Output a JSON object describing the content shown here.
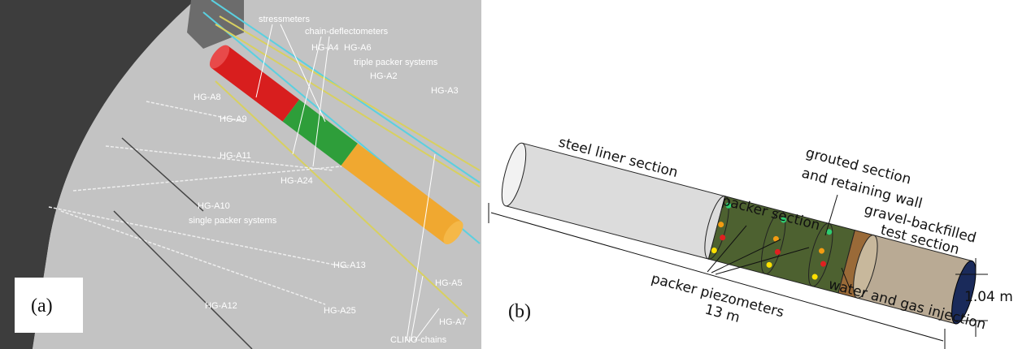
{
  "panel_a": {
    "label": "(a)",
    "annotations": [
      "stressmeters",
      "chain-deflectometers",
      "HG-A4",
      "HG-A6",
      "triple packer systems",
      "HG-A2",
      "HG-A3",
      "HG-A8",
      "HG-A9",
      "HG-A11",
      "HG-A24",
      "HG-A10",
      "single packer systems",
      "HG-A5",
      "HG-A13",
      "HG-A7",
      "HG-A12",
      "HG-A25",
      "CLINO-chains"
    ]
  },
  "panel_b": {
    "label": "(b)",
    "annotations": [
      "steel liner section",
      "grouted section",
      "and retaining wall",
      "packer section",
      "gravel-backfilled",
      "test section",
      "packer piezometers",
      "13 m",
      "1.04 m",
      "water and gas injection"
    ]
  }
}
